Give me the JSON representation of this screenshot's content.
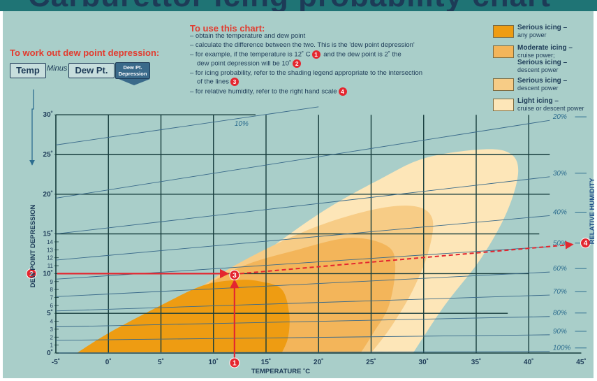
{
  "title": "Carburettor icing probability chart",
  "dpd_instruction": "To work out dew point depression:",
  "formula": {
    "left": "Temp",
    "operator": "Minus",
    "right": "Dew Pt.",
    "equals": "=",
    "result_line1": "Dew Pt.",
    "result_line2": "Depression"
  },
  "howto": {
    "title": "To use this chart:",
    "lines": [
      {
        "text": "– obtain the temperature and dew point",
        "marker": ""
      },
      {
        "text": "– calculate the difference between the two. This is the 'dew point depression'",
        "marker": ""
      },
      {
        "text": "– for example, if the temperature is 12˚ C",
        "marker": "1",
        "tail": " and the dew point is 2˚ the"
      },
      {
        "text": "dew point depression will be 10˚",
        "marker": "2",
        "tail": ""
      },
      {
        "text": "– for icing probability, refer to the shading legend appropriate to the intersection",
        "marker": "",
        "tail": ""
      },
      {
        "text": "of the lines",
        "marker": "3",
        "tail": ""
      },
      {
        "text": "– for relative humidity, refer to the right hand scale",
        "marker": "4",
        "tail": ""
      }
    ]
  },
  "legend": [
    {
      "bold1": "Serious icing –",
      "line2": "any power",
      "bold3": "",
      "line4": "",
      "color": "#ee9c12"
    },
    {
      "bold1": "Moderate icing –",
      "line2": "cruise power;",
      "bold3": "Serious icing –",
      "line4": "descent power",
      "color": "#f3b55a"
    },
    {
      "bold1": "Serious icing –",
      "line2": "descent power",
      "bold3": "",
      "line4": "",
      "color": "#f7cc86"
    },
    {
      "bold1": "Light icing –",
      "line2": "cruise or descent power",
      "bold3": "",
      "line4": "",
      "color": "#fde6b8"
    }
  ],
  "colors": {
    "panel": "#a9cec9",
    "grid": "#163c3c",
    "red": "#e4262f",
    "humidity_line": "#3a6a8a",
    "axis_text": "#1d3b57"
  },
  "chart_data": {
    "type": "area",
    "xlabel": "TEMPERATURE ˚C",
    "ylabel": "DEW POINT DEPRESSION",
    "right_axis_label": "RELATIVE HUMIDITY",
    "xlim": [
      -5,
      45
    ],
    "ylim": [
      0,
      30
    ],
    "x_ticks": [
      {
        "value": -5,
        "label": "-5˚"
      },
      {
        "value": 0,
        "label": "0˚"
      },
      {
        "value": 5,
        "label": "5˚"
      },
      {
        "value": 10,
        "label": "10˚"
      },
      {
        "value": 15,
        "label": "15˚"
      },
      {
        "value": 20,
        "label": "20˚"
      },
      {
        "value": 25,
        "label": "25˚"
      },
      {
        "value": 30,
        "label": "30˚"
      },
      {
        "value": 35,
        "label": "35˚"
      },
      {
        "value": 40,
        "label": "40˚"
      },
      {
        "value": 45,
        "label": "45˚"
      }
    ],
    "y_ticks": [
      {
        "value": 0,
        "label": "0˚"
      },
      {
        "value": 1,
        "label": "1"
      },
      {
        "value": 2,
        "label": "2"
      },
      {
        "value": 3,
        "label": "3"
      },
      {
        "value": 4,
        "label": "4"
      },
      {
        "value": 5,
        "label": "5˚"
      },
      {
        "value": 6,
        "label": "6"
      },
      {
        "value": 7,
        "label": "7"
      },
      {
        "value": 8,
        "label": "8"
      },
      {
        "value": 9,
        "label": "9"
      },
      {
        "value": 10,
        "label": "10˚"
      },
      {
        "value": 11,
        "label": "11"
      },
      {
        "value": 12,
        "label": "12"
      },
      {
        "value": 13,
        "label": "13"
      },
      {
        "value": 14,
        "label": "14"
      },
      {
        "value": 15,
        "label": "15˚"
      },
      {
        "value": 20,
        "label": "20˚"
      },
      {
        "value": 25,
        "label": "25˚"
      },
      {
        "value": 30,
        "label": "30˚"
      }
    ],
    "regions": [
      {
        "name": "Light icing – cruise or descent power",
        "color": "#fde6b8",
        "points": [
          [
            -3,
            0
          ],
          [
            5,
            4
          ],
          [
            12,
            10
          ],
          [
            20,
            17.5
          ],
          [
            26,
            22
          ],
          [
            30,
            24.5
          ],
          [
            35,
            25.6
          ],
          [
            38,
            25.3
          ],
          [
            39,
            23
          ],
          [
            38,
            18
          ],
          [
            35.5,
            12
          ],
          [
            32,
            6
          ],
          [
            29,
            0
          ]
        ]
      },
      {
        "name": "Serious icing – descent power",
        "color": "#f7cc86",
        "points": [
          [
            -2,
            0
          ],
          [
            5,
            5
          ],
          [
            12,
            11
          ],
          [
            19,
            15.5
          ],
          [
            25,
            18
          ],
          [
            29,
            18.5
          ],
          [
            30.8,
            17
          ],
          [
            30.5,
            13
          ],
          [
            29,
            8
          ],
          [
            27,
            3.5
          ],
          [
            25,
            0
          ]
        ]
      },
      {
        "name": "Moderate icing – cruise power; Serious icing – descent power",
        "color": "#f3b55a",
        "points": [
          [
            -1.5,
            0
          ],
          [
            5,
            5
          ],
          [
            12,
            10.5
          ],
          [
            18,
            13
          ],
          [
            23,
            14.5
          ],
          [
            26.5,
            13.5
          ],
          [
            27.3,
            11
          ],
          [
            26.7,
            6
          ],
          [
            25.2,
            2.5
          ],
          [
            24,
            0
          ]
        ]
      },
      {
        "name": "Serious icing – any power",
        "color": "#ee9c12",
        "points": [
          [
            -3,
            0
          ],
          [
            0,
            2.5
          ],
          [
            5,
            6
          ],
          [
            9,
            8.5
          ],
          [
            12.3,
            9.2
          ],
          [
            14.5,
            9
          ],
          [
            16.5,
            8
          ],
          [
            17.2,
            5
          ],
          [
            17.1,
            2
          ],
          [
            16.5,
            0
          ]
        ]
      }
    ],
    "humidity_lines": [
      {
        "label": "10%",
        "x0": -5,
        "y0": 26.2,
        "x1": 20,
        "y1": 32.5
      },
      {
        "label": "20%",
        "x0": -5,
        "y0": 19.5,
        "x1": 42,
        "y1": 29.3
      },
      {
        "label": "30%",
        "x0": -5,
        "y0": 15,
        "x1": 42,
        "y1": 22.2
      },
      {
        "label": "40%",
        "x0": -5,
        "y0": 11.7,
        "x1": 42,
        "y1": 17.3
      },
      {
        "label": "50%",
        "x0": -5,
        "y0": 9.3,
        "x1": 42,
        "y1": 13.4
      },
      {
        "label": "60%",
        "x0": -5,
        "y0": 7.1,
        "x1": 42,
        "y1": 10.2
      },
      {
        "label": "70%",
        "x0": -5,
        "y0": 5.3,
        "x1": 42,
        "y1": 7.3
      },
      {
        "label": "80%",
        "x0": -5,
        "y0": 3.3,
        "x1": 42,
        "y1": 4.6
      },
      {
        "label": "90%",
        "x0": -5,
        "y0": 1.6,
        "x1": 42,
        "y1": 2.3
      },
      {
        "label": "100%",
        "x0": -5,
        "y0": 0,
        "x1": 42,
        "y1": 0.2
      }
    ],
    "example": {
      "temperature": 12,
      "dew_point_depression": 10,
      "relative_humidity": "50%",
      "marker_temperature": "1",
      "marker_depression": "2",
      "marker_intersection": "3",
      "marker_humidity": "4"
    }
  }
}
